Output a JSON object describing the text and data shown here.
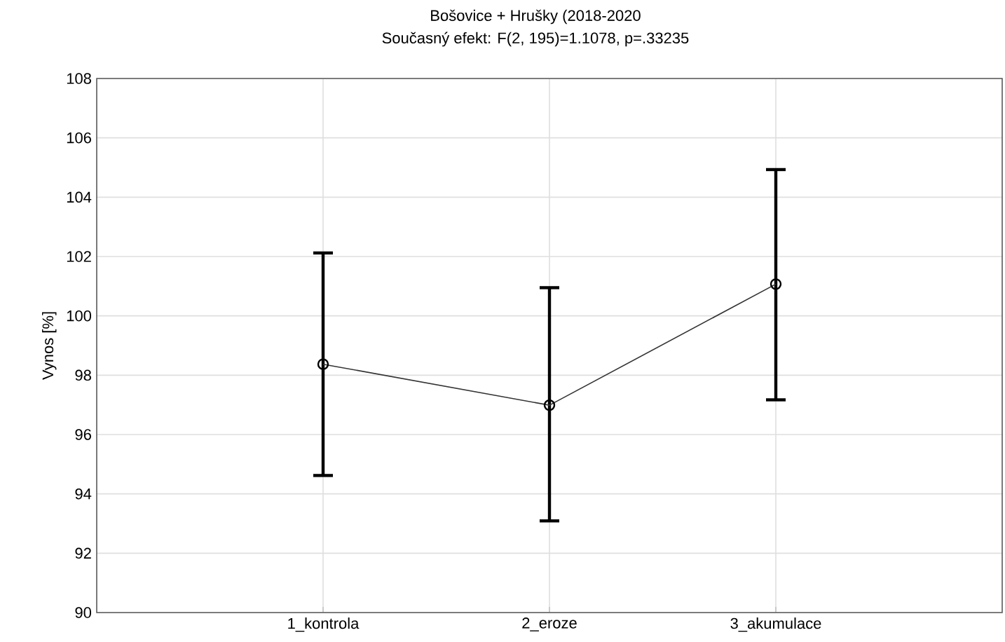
{
  "chart_data": {
    "type": "line",
    "title": "Bošovice + Hrušky (2018-2020",
    "subtitle": "Současný efekt: F(2, 195)=1.1078, p=.33235",
    "ylabel": "Vynos [%]",
    "categories": [
      "1_kontrola",
      "2_eroze",
      "3_akumulace"
    ],
    "values": [
      98.37,
      96.99,
      101.07
    ],
    "errors": [
      [
        94.62,
        102.12
      ],
      [
        93.09,
        100.95
      ],
      [
        97.17,
        104.93
      ]
    ],
    "color": "#333333",
    "marker": "circle",
    "line_style": "solid",
    "grid": true,
    "ylim": [
      90,
      108
    ],
    "yticks": [
      90,
      92,
      94,
      96,
      98,
      100,
      102,
      104,
      106,
      108
    ]
  }
}
